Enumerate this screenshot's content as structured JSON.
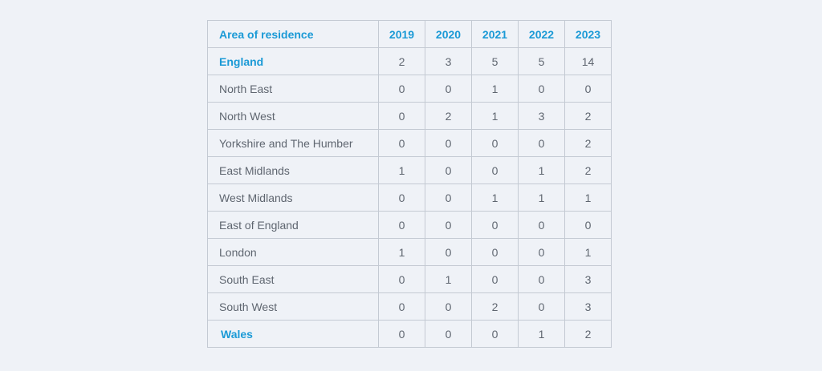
{
  "table": {
    "headers": [
      "Area of residence",
      "2019",
      "2020",
      "2021",
      "2022",
      "2023"
    ],
    "rows": [
      {
        "area": "England",
        "values": [
          "2",
          "3",
          "5",
          "5",
          "14"
        ],
        "is_region": true
      },
      {
        "area": "North East",
        "values": [
          "0",
          "0",
          "1",
          "0",
          "0"
        ],
        "is_region": false
      },
      {
        "area": "North West",
        "values": [
          "0",
          "2",
          "1",
          "3",
          "2"
        ],
        "is_region": false
      },
      {
        "area": "Yorkshire and The Humber",
        "values": [
          "0",
          "0",
          "0",
          "0",
          "2"
        ],
        "is_region": false
      },
      {
        "area": "East Midlands",
        "values": [
          "1",
          "0",
          "0",
          "1",
          "2"
        ],
        "is_region": false
      },
      {
        "area": "West Midlands",
        "values": [
          "0",
          "0",
          "1",
          "1",
          "1"
        ],
        "is_region": false
      },
      {
        "area": "East of England",
        "values": [
          "0",
          "0",
          "0",
          "0",
          "0"
        ],
        "is_region": false
      },
      {
        "area": "London",
        "values": [
          "1",
          "0",
          "0",
          "0",
          "1"
        ],
        "is_region": false
      },
      {
        "area": "South East",
        "values": [
          "0",
          "1",
          "0",
          "0",
          "3"
        ],
        "is_region": false
      },
      {
        "area": "South West",
        "values": [
          "0",
          "0",
          "2",
          "0",
          "3"
        ],
        "is_region": false
      },
      {
        "area": "Wales",
        "values": [
          "0",
          "0",
          "0",
          "1",
          "2"
        ],
        "is_region": true
      }
    ]
  },
  "colors": {
    "background": "#eff2f7",
    "accent": "#1b9ad6",
    "text": "#5f6670",
    "border": "#c4cad3"
  }
}
